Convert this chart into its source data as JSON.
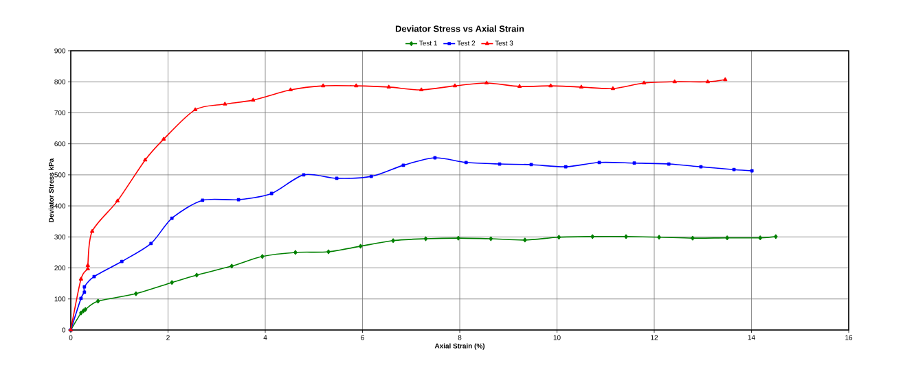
{
  "chart_data": {
    "type": "line",
    "title": "Deviator Stress vs Axial Strain",
    "xlabel": "Axial Strain (%)",
    "ylabel": "Deviator Stress kPa",
    "xlim": [
      0,
      16
    ],
    "xticks": [
      0,
      2,
      4,
      6,
      8,
      10,
      12,
      14,
      16
    ],
    "ylim": [
      0,
      900
    ],
    "yticks": [
      0,
      100,
      200,
      300,
      400,
      500,
      600,
      700,
      800,
      900
    ],
    "grid": true,
    "legend": "top",
    "series": [
      {
        "name": "Test 1",
        "color": "#008000",
        "marker": "diamond",
        "x": [
          0,
          0.21,
          0.26,
          0.3,
          0.56,
          1.34,
          2.08,
          2.59,
          3.31,
          3.94,
          4.62,
          5.3,
          5.96,
          6.63,
          7.3,
          7.97,
          8.64,
          9.34,
          10.04,
          10.73,
          11.42,
          12.1,
          12.79,
          13.5,
          14.18,
          14.5
        ],
        "values": [
          0,
          55,
          62,
          66,
          93,
          117,
          153,
          177,
          206,
          237,
          250,
          252,
          270,
          288,
          294,
          296,
          294,
          290,
          299,
          301,
          301,
          299,
          296,
          297,
          297,
          301
        ]
      },
      {
        "name": "Test 2",
        "color": "#0000ff",
        "marker": "square",
        "x": [
          0,
          0.21,
          0.28,
          0.28,
          0.48,
          1.05,
          1.65,
          2.08,
          2.71,
          3.45,
          4.13,
          4.79,
          5.47,
          6.18,
          6.84,
          7.49,
          8.13,
          8.82,
          9.47,
          10.18,
          10.87,
          11.59,
          12.3,
          12.96,
          13.64,
          14.01
        ],
        "values": [
          0,
          102,
          122,
          139,
          172,
          221,
          279,
          360,
          418,
          420,
          440,
          500,
          489,
          495,
          531,
          555,
          540,
          535,
          533,
          526,
          540,
          538,
          535,
          526,
          517,
          513
        ]
      },
      {
        "name": "Test 3",
        "color": "#ff0000",
        "marker": "triangle",
        "x": [
          0,
          0.21,
          0.35,
          0.35,
          0.44,
          0.96,
          1.53,
          1.91,
          2.56,
          3.17,
          3.75,
          4.52,
          5.19,
          5.87,
          6.54,
          7.21,
          7.9,
          8.55,
          9.23,
          9.87,
          10.5,
          11.15,
          11.79,
          12.42,
          13.1,
          13.46
        ],
        "values": [
          0,
          164,
          197,
          208,
          318,
          416,
          548,
          615,
          710,
          728,
          741,
          774,
          787,
          787,
          783,
          774,
          787,
          796,
          785,
          787,
          783,
          778,
          796,
          800,
          800,
          807
        ]
      }
    ]
  }
}
